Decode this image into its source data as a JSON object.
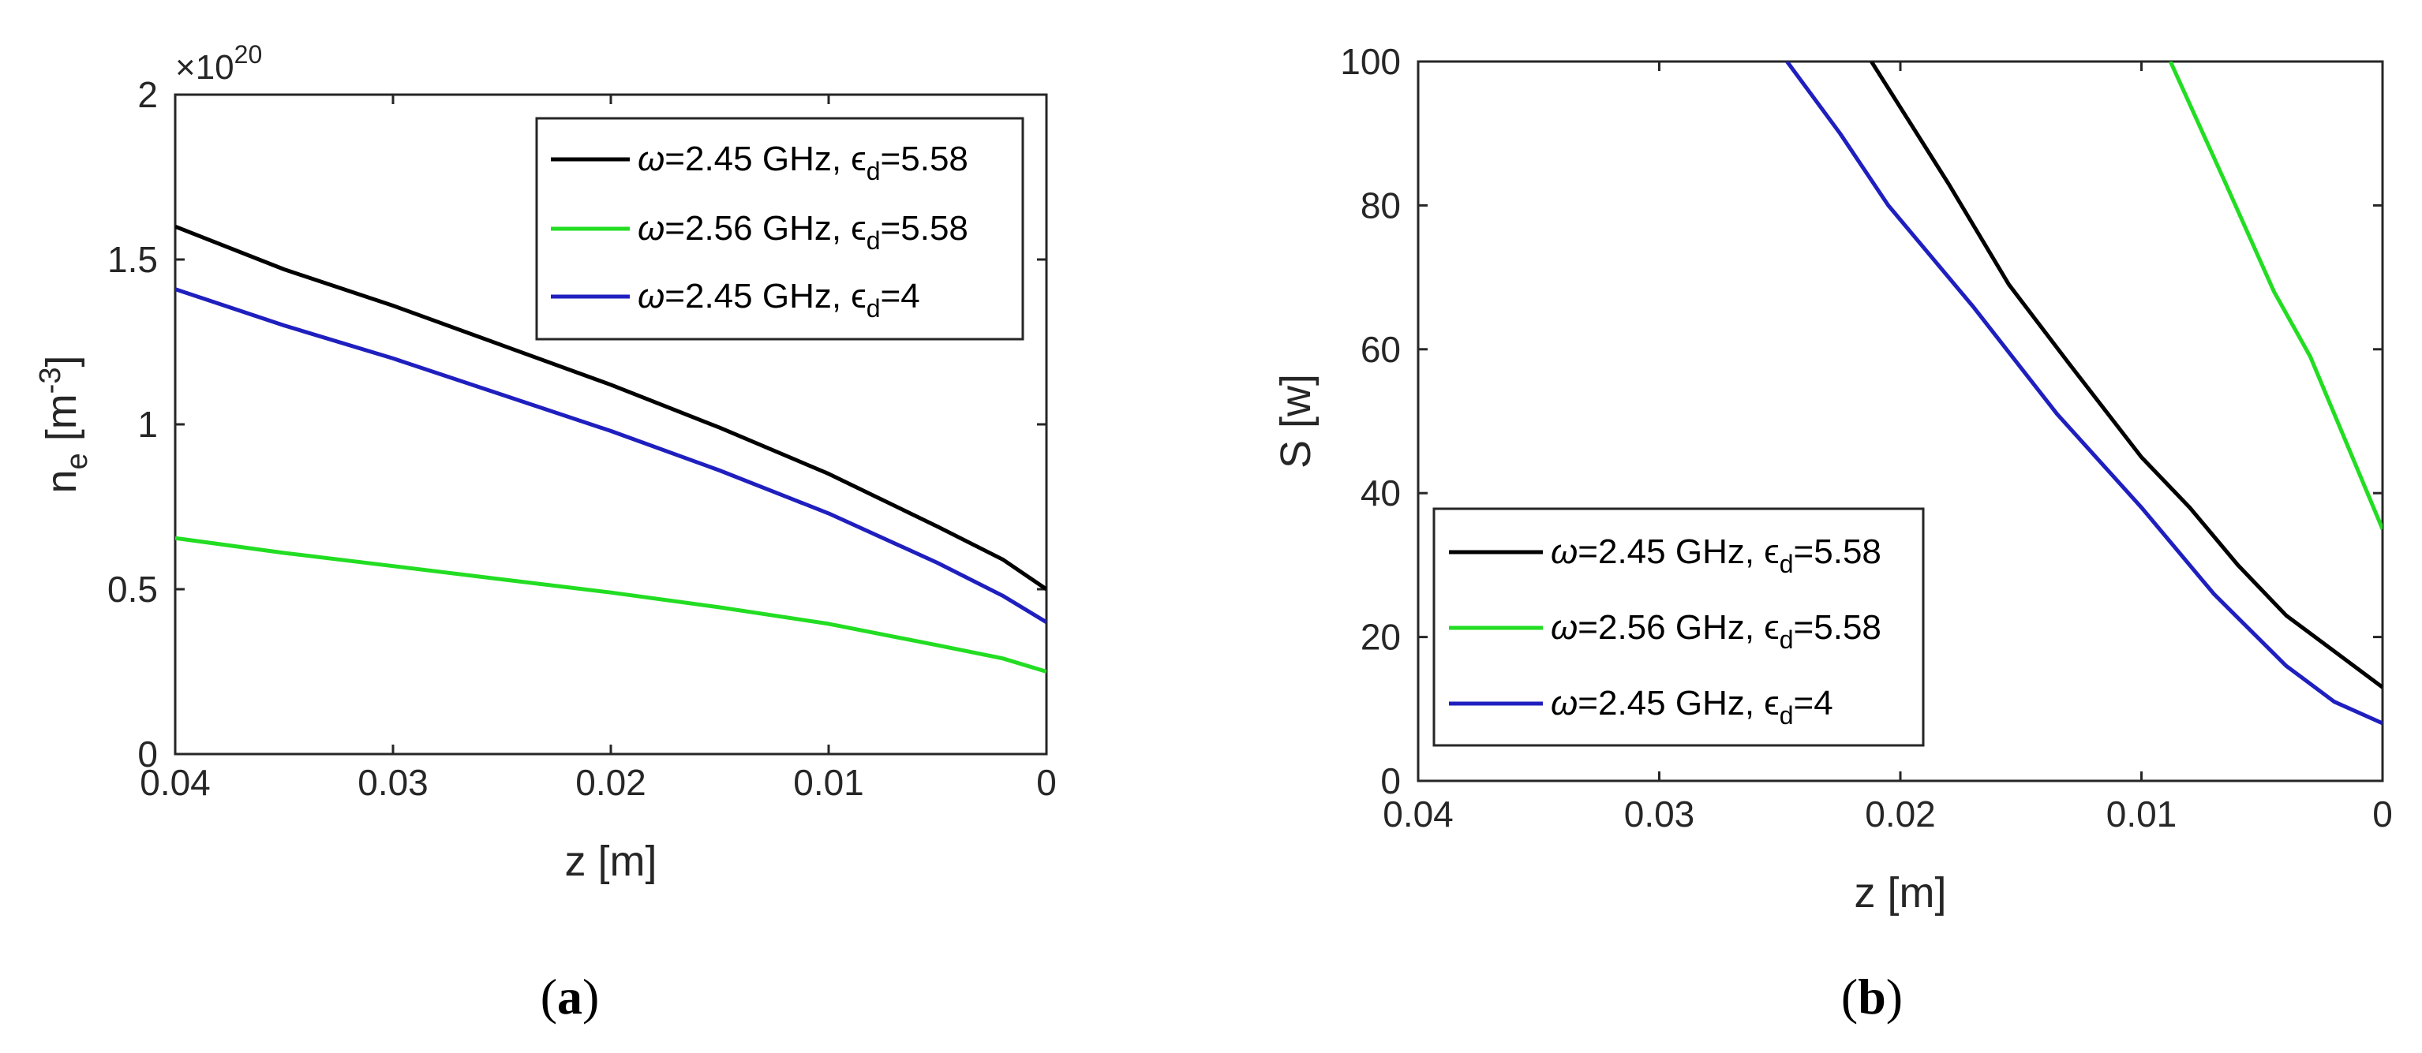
{
  "chart_data": [
    {
      "type": "line",
      "panel_label": "a",
      "title": "",
      "xlabel": "z [m]",
      "ylabel_main": "n",
      "ylabel_sub": "e",
      "ylabel_unit_pre": " [m",
      "ylabel_unit_sup": "-3",
      "ylabel_unit_post": "]",
      "y_multiplier_prefix": "×10",
      "y_multiplier_exp": "20",
      "xlim": [
        0.04,
        0.0
      ],
      "ylim": [
        0,
        2
      ],
      "xticks": [
        0.04,
        0.03,
        0.02,
        0.01,
        0
      ],
      "xtick_labels": [
        "0.04",
        "0.03",
        "0.02",
        "0.01",
        "0"
      ],
      "yticks": [
        0,
        0.5,
        1,
        1.5,
        2
      ],
      "ytick_labels": [
        "0",
        "0.5",
        "1",
        "1.5",
        "2"
      ],
      "grid": false,
      "legend_position": "top-right",
      "series": [
        {
          "name": "ω=2.45 GHz, ε_d=5.58",
          "color": "#000000",
          "legend": {
            "omega": "ω",
            "freq": "=2.45 GHz, ",
            "eps": "ϵ",
            "sub": "d",
            "val": "=5.58"
          },
          "x": [
            0.04,
            0.035,
            0.03,
            0.025,
            0.02,
            0.015,
            0.01,
            0.005,
            0.002,
            0.0
          ],
          "y": [
            1.6,
            1.47,
            1.36,
            1.24,
            1.12,
            0.99,
            0.85,
            0.69,
            0.59,
            0.5
          ]
        },
        {
          "name": "ω=2.56 GHz, ε_d=5.58",
          "color": "#22dd22",
          "legend": {
            "omega": "ω",
            "freq": "=2.56 GHz, ",
            "eps": "ϵ",
            "sub": "d",
            "val": "=5.58"
          },
          "x": [
            0.04,
            0.035,
            0.03,
            0.025,
            0.02,
            0.015,
            0.01,
            0.005,
            0.002,
            0.0
          ],
          "y": [
            0.655,
            0.61,
            0.57,
            0.53,
            0.49,
            0.445,
            0.395,
            0.33,
            0.29,
            0.25
          ]
        },
        {
          "name": "ω=2.45 GHz, ε_d=4",
          "color": "#1f1fbf",
          "legend": {
            "omega": "ω",
            "freq": "=2.45 GHz, ",
            "eps": "ϵ",
            "sub": "d",
            "val": "=4"
          },
          "x": [
            0.04,
            0.035,
            0.03,
            0.025,
            0.02,
            0.015,
            0.01,
            0.005,
            0.002,
            0.0
          ],
          "y": [
            1.41,
            1.3,
            1.2,
            1.09,
            0.98,
            0.86,
            0.73,
            0.58,
            0.48,
            0.4
          ]
        }
      ]
    },
    {
      "type": "line",
      "panel_label": "b",
      "title": "",
      "xlabel": "z [m]",
      "ylabel": "S [w]",
      "xlim": [
        0.04,
        0.0
      ],
      "ylim": [
        0,
        100
      ],
      "xticks": [
        0.04,
        0.03,
        0.02,
        0.01,
        0
      ],
      "xtick_labels": [
        "0.04",
        "0.03",
        "0.02",
        "0.01",
        "0"
      ],
      "yticks": [
        0,
        20,
        40,
        60,
        80,
        100
      ],
      "ytick_labels": [
        "0",
        "20",
        "40",
        "60",
        "80",
        "100"
      ],
      "grid": false,
      "legend_position": "bottom-left",
      "series": [
        {
          "name": "ω=2.45 GHz, ε_d=5.58",
          "color": "#000000",
          "legend": {
            "omega": "ω",
            "freq": "=2.45 GHz, ",
            "eps": "ϵ",
            "sub": "d",
            "val": "=5.58"
          },
          "x": [
            0.0212,
            0.018,
            0.0155,
            0.013,
            0.01,
            0.008,
            0.006,
            0.004,
            0.002,
            0.0
          ],
          "y": [
            100,
            83,
            69,
            58,
            45,
            38,
            30,
            23,
            18,
            13
          ]
        },
        {
          "name": "ω=2.56 GHz, ε_d=5.58",
          "color": "#22dd22",
          "legend": {
            "omega": "ω",
            "freq": "=2.56 GHz, ",
            "eps": "ϵ",
            "sub": "d",
            "val": "=5.58"
          },
          "x": [
            0.0088,
            0.0065,
            0.0045,
            0.003,
            0.0015,
            0.0
          ],
          "y": [
            100,
            83,
            68,
            59,
            47,
            35
          ]
        },
        {
          "name": "ω=2.45 GHz, ε_d=4",
          "color": "#1f1fbf",
          "legend": {
            "omega": "ω",
            "freq": "=2.45 GHz, ",
            "eps": "ϵ",
            "sub": "d",
            "val": "=4"
          },
          "x": [
            0.0247,
            0.0225,
            0.0205,
            0.017,
            0.0135,
            0.01,
            0.007,
            0.004,
            0.002,
            0.0
          ],
          "y": [
            100,
            90,
            80,
            66,
            51,
            38,
            26,
            16,
            11,
            8
          ]
        }
      ]
    }
  ],
  "captions": {
    "a": "a",
    "b": "b",
    "open": "(",
    "close": ")"
  }
}
